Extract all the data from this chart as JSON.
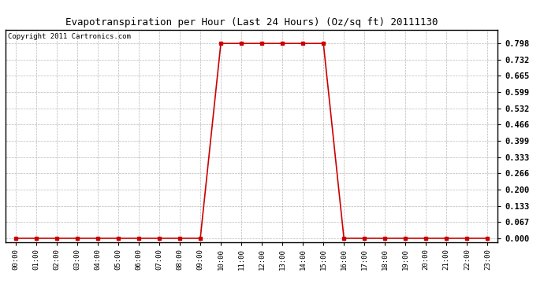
{
  "title": "Evapotranspiration per Hour (Last 24 Hours) (Oz/sq ft) 20111130",
  "copyright": "Copyright 2011 Cartronics.com",
  "hours": [
    "00:00",
    "01:00",
    "02:00",
    "03:00",
    "04:00",
    "05:00",
    "06:00",
    "07:00",
    "08:00",
    "09:00",
    "10:00",
    "11:00",
    "12:00",
    "13:00",
    "14:00",
    "15:00",
    "16:00",
    "17:00",
    "18:00",
    "19:00",
    "20:00",
    "21:00",
    "22:00",
    "23:00"
  ],
  "values": [
    0.0,
    0.0,
    0.0,
    0.0,
    0.0,
    0.0,
    0.0,
    0.0,
    0.0,
    0.0,
    0.798,
    0.798,
    0.798,
    0.798,
    0.798,
    0.798,
    0.0,
    0.0,
    0.0,
    0.0,
    0.0,
    0.0,
    0.0,
    0.0
  ],
  "line_color": "#cc0000",
  "marker_color": "#cc0000",
  "bg_color": "#ffffff",
  "grid_color": "#b0b0b0",
  "yticks": [
    0.0,
    0.067,
    0.133,
    0.2,
    0.266,
    0.333,
    0.399,
    0.466,
    0.532,
    0.599,
    0.665,
    0.732,
    0.798
  ],
  "ymax": 0.855,
  "ymin": -0.015,
  "title_fontsize": 9,
  "copyright_fontsize": 6.5,
  "tick_fontsize": 6.5,
  "ytick_fontsize": 7.5
}
